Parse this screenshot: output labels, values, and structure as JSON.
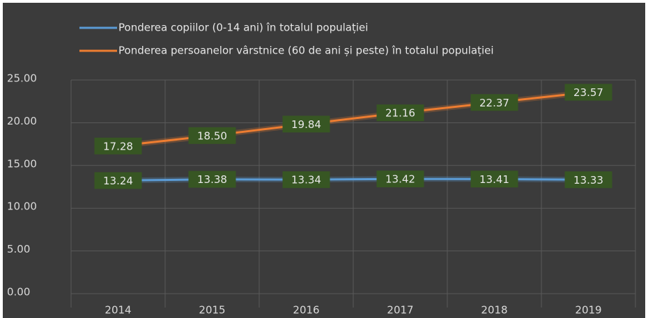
{
  "chart_data": {
    "type": "line",
    "categories": [
      "2014",
      "2015",
      "2016",
      "2017",
      "2018",
      "2019"
    ],
    "series": [
      {
        "name": "Ponderea copiilor (0-14 ani) în totalul populației",
        "color": "#5b9bd5",
        "values": [
          13.24,
          13.38,
          13.34,
          13.42,
          13.41,
          13.33
        ],
        "value_labels": [
          "13.24",
          "13.38",
          "13.34",
          "13.42",
          "13.41",
          "13.33"
        ]
      },
      {
        "name": "Ponderea persoanelor vârstnice (60 de ani și peste) în totalul populației",
        "color": "#ed7d31",
        "values": [
          17.28,
          18.5,
          19.84,
          21.16,
          22.37,
          23.57
        ],
        "value_labels": [
          "17.28",
          "18.50",
          "19.84",
          "21.16",
          "22.37",
          "23.57"
        ]
      }
    ],
    "ylim": [
      0,
      25
    ],
    "yticks": [
      {
        "value": 0,
        "label": "0.00"
      },
      {
        "value": 5,
        "label": "5.00"
      },
      {
        "value": 10,
        "label": "10.00"
      },
      {
        "value": 15,
        "label": "15.00"
      },
      {
        "value": 20,
        "label": "20.00"
      },
      {
        "value": 25,
        "label": "25.00"
      }
    ],
    "grid": true,
    "legend": "top"
  }
}
